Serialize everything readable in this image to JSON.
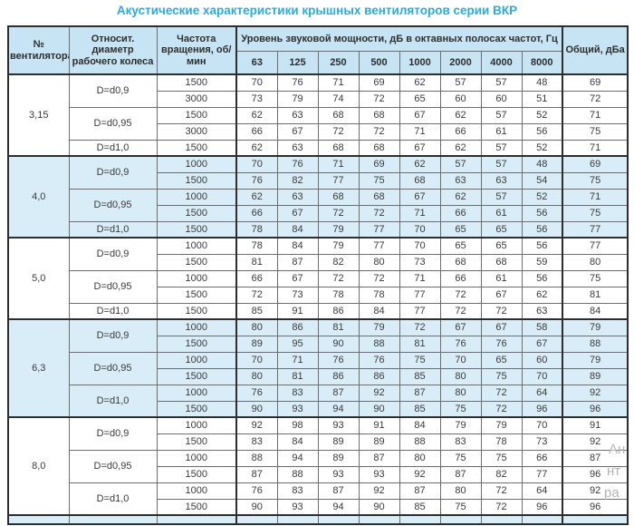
{
  "title": "Акустические характеристики крышных вентиляторов серии ВКР",
  "colors": {
    "accent": "#29abe2",
    "header_bg": "#c7e4f4",
    "shaded_row_bg": "#d9edf8",
    "border": "#2e2e2e"
  },
  "table": {
    "headers": {
      "fan": "№ вентилятора",
      "diameter": "Относит. диаметр рабочего колеса",
      "speed": "Частота вращения, об/мин",
      "span": "Уровень звуковой мощности, дБ в октавных полосах частот, Гц",
      "freqs": [
        "63",
        "125",
        "250",
        "500",
        "1000",
        "2000",
        "4000",
        "8000"
      ],
      "total": "Общий, дБа"
    },
    "groups": [
      {
        "fan": "3,15",
        "shaded": false,
        "subs": [
          {
            "d": "D=d0,9",
            "rows": [
              {
                "rpm": "1500",
                "v": [
                  70,
                  76,
                  71,
                  69,
                  62,
                  57,
                  57,
                  48
                ],
                "total": 69
              },
              {
                "rpm": "3000",
                "v": [
                  73,
                  79,
                  74,
                  72,
                  65,
                  60,
                  60,
                  51
                ],
                "total": 72
              }
            ]
          },
          {
            "d": "D=d0,95",
            "rows": [
              {
                "rpm": "1500",
                "v": [
                  62,
                  63,
                  68,
                  68,
                  67,
                  62,
                  57,
                  52
                ],
                "total": 71
              },
              {
                "rpm": "3000",
                "v": [
                  66,
                  67,
                  72,
                  72,
                  71,
                  66,
                  61,
                  56
                ],
                "total": 75
              }
            ]
          },
          {
            "d": "D=d1,0",
            "rows": [
              {
                "rpm": "1500",
                "v": [
                  62,
                  63,
                  68,
                  68,
                  67,
                  62,
                  57,
                  52
                ],
                "total": 71
              }
            ]
          }
        ]
      },
      {
        "fan": "4,0",
        "shaded": true,
        "subs": [
          {
            "d": "D=d0,9",
            "rows": [
              {
                "rpm": "1000",
                "v": [
                  70,
                  76,
                  71,
                  69,
                  62,
                  57,
                  57,
                  48
                ],
                "total": 69
              },
              {
                "rpm": "1500",
                "v": [
                  76,
                  82,
                  77,
                  75,
                  68,
                  63,
                  63,
                  54
                ],
                "total": 75
              }
            ]
          },
          {
            "d": "D=d0,95",
            "rows": [
              {
                "rpm": "1000",
                "v": [
                  62,
                  63,
                  68,
                  68,
                  67,
                  62,
                  57,
                  52
                ],
                "total": 71
              },
              {
                "rpm": "1500",
                "v": [
                  66,
                  67,
                  72,
                  72,
                  71,
                  66,
                  61,
                  56
                ],
                "total": 75
              }
            ]
          },
          {
            "d": "D=d1,0",
            "rows": [
              {
                "rpm": "1500",
                "v": [
                  78,
                  84,
                  79,
                  77,
                  70,
                  65,
                  65,
                  56
                ],
                "total": 77
              }
            ]
          }
        ]
      },
      {
        "fan": "5,0",
        "shaded": false,
        "subs": [
          {
            "d": "D=d0,9",
            "rows": [
              {
                "rpm": "1000",
                "v": [
                  78,
                  84,
                  79,
                  77,
                  70,
                  65,
                  65,
                  56
                ],
                "total": 77
              },
              {
                "rpm": "1500",
                "v": [
                  81,
                  87,
                  82,
                  80,
                  73,
                  68,
                  68,
                  59
                ],
                "total": 80
              }
            ]
          },
          {
            "d": "D=d0,95",
            "rows": [
              {
                "rpm": "1000",
                "v": [
                  66,
                  67,
                  72,
                  72,
                  71,
                  66,
                  61,
                  56
                ],
                "total": 75
              },
              {
                "rpm": "1500",
                "v": [
                  72,
                  73,
                  78,
                  78,
                  77,
                  72,
                  67,
                  62
                ],
                "total": 81
              }
            ]
          },
          {
            "d": "D=d1,0",
            "rows": [
              {
                "rpm": "1500",
                "v": [
                  85,
                  91,
                  86,
                  84,
                  77,
                  72,
                  72,
                  63
                ],
                "total": 84
              }
            ]
          }
        ]
      },
      {
        "fan": "6,3",
        "shaded": true,
        "subs": [
          {
            "d": "D=d0,9",
            "rows": [
              {
                "rpm": "1000",
                "v": [
                  80,
                  86,
                  81,
                  79,
                  72,
                  67,
                  67,
                  58
                ],
                "total": 79
              },
              {
                "rpm": "1500",
                "v": [
                  89,
                  95,
                  90,
                  88,
                  81,
                  76,
                  76,
                  67
                ],
                "total": 88
              }
            ]
          },
          {
            "d": "D=d0,95",
            "rows": [
              {
                "rpm": "1000",
                "v": [
                  70,
                  71,
                  76,
                  76,
                  75,
                  70,
                  65,
                  60
                ],
                "total": 79
              },
              {
                "rpm": "1500",
                "v": [
                  80,
                  81,
                  86,
                  86,
                  85,
                  80,
                  75,
                  70
                ],
                "total": 89
              }
            ]
          },
          {
            "d": "D=d1,0",
            "rows": [
              {
                "rpm": "1000",
                "v": [
                  76,
                  83,
                  87,
                  92,
                  87,
                  80,
                  72,
                  64
                ],
                "total": 92
              },
              {
                "rpm": "1500",
                "v": [
                  90,
                  93,
                  94,
                  90,
                  85,
                  75,
                  72,
                  96
                ],
                "total": 96
              }
            ]
          }
        ]
      },
      {
        "fan": "8,0",
        "shaded": false,
        "subs": [
          {
            "d": "D=d0,9",
            "rows": [
              {
                "rpm": "1000",
                "v": [
                  92,
                  98,
                  93,
                  91,
                  84,
                  79,
                  79,
                  70
                ],
                "total": 91
              },
              {
                "rpm": "1500",
                "v": [
                  83,
                  84,
                  89,
                  89,
                  88,
                  83,
                  78,
                  73
                ],
                "total": 92
              }
            ]
          },
          {
            "d": "D=d0,95",
            "rows": [
              {
                "rpm": "1000",
                "v": [
                  88,
                  94,
                  89,
                  87,
                  80,
                  75,
                  75,
                  66
                ],
                "total": 87
              },
              {
                "rpm": "1500",
                "v": [
                  87,
                  88,
                  93,
                  93,
                  92,
                  87,
                  82,
                  77
                ],
                "total": 96
              }
            ]
          },
          {
            "d": "D=d1,0",
            "rows": [
              {
                "rpm": "1000",
                "v": [
                  76,
                  83,
                  87,
                  92,
                  87,
                  80,
                  72,
                  64
                ],
                "total": 92
              },
              {
                "rpm": "1500",
                "v": [
                  90,
                  93,
                  94,
                  90,
                  85,
                  75,
                  72,
                  96
                ],
                "total": 96
              }
            ]
          }
        ]
      }
    ]
  },
  "watermark": {
    "frag1": "Ан",
    "frag2": "нт",
    "frag3": "ра"
  }
}
